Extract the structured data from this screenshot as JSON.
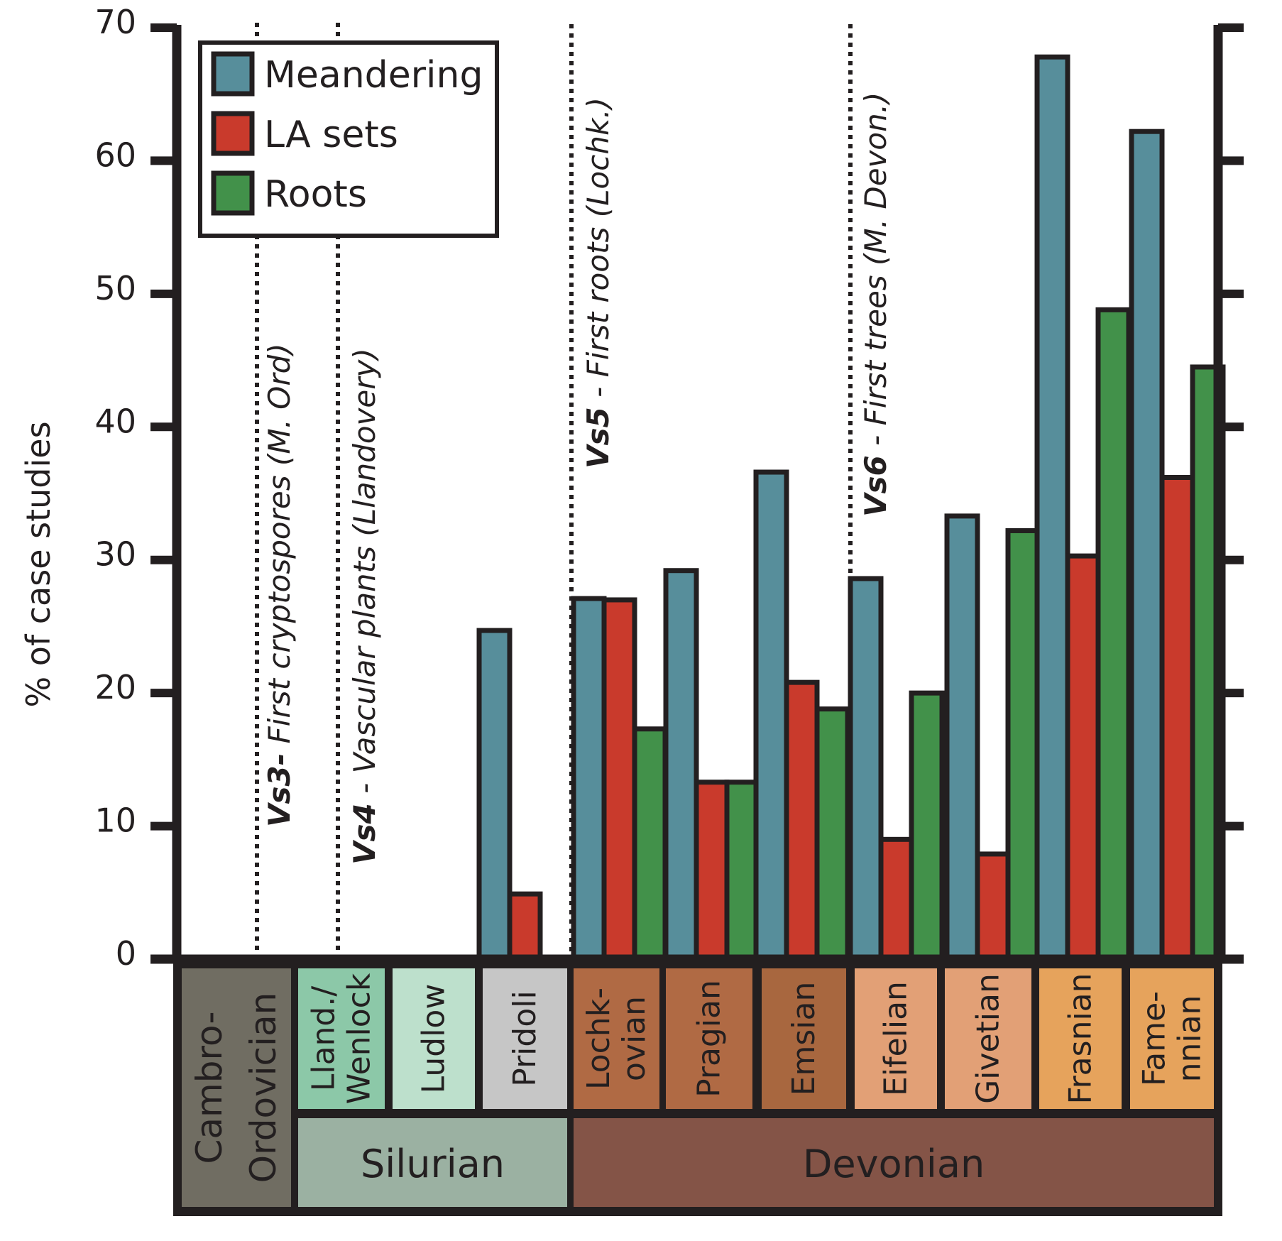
{
  "chart_data": {
    "type": "bar",
    "title": "",
    "xlabel": "",
    "ylabel": "% of case studies",
    "ylim": [
      0,
      70
    ],
    "yticks": [
      0,
      10,
      20,
      30,
      40,
      50,
      60,
      70
    ],
    "ytick_labels": [
      "0",
      "10",
      "20",
      "30",
      "40",
      "50",
      "60",
      "70"
    ],
    "grid": false,
    "legend_position": "top-left",
    "categories": [
      "Cambro-Ordovician",
      "Lland./Wenlock",
      "Ludlow",
      "Pridoli",
      "Lochkovian",
      "Pragian",
      "Emsian",
      "Eifelian",
      "Givetian",
      "Frasnian",
      "Famennian"
    ],
    "series": [
      {
        "name": "Meandering",
        "color": "#578e9b",
        "values": [
          0,
          0,
          0,
          24.7,
          27.1,
          29.2,
          36.6,
          28.6,
          33.3,
          67.8,
          62.2
        ]
      },
      {
        "name": "LA sets",
        "color": "#c93a2c",
        "values": [
          0,
          0,
          0,
          4.9,
          27.0,
          13.3,
          20.8,
          9.0,
          7.9,
          30.3,
          36.2
        ]
      },
      {
        "name": "Roots",
        "color": "#42914a",
        "values": [
          0,
          0,
          0,
          0,
          17.3,
          13.3,
          18.8,
          20.0,
          32.2,
          48.8,
          44.5
        ]
      }
    ],
    "legend": [
      "Meandering",
      "LA sets",
      "Roots"
    ],
    "annotations": [
      {
        "bold": "Vs3-",
        "text": " First cryptospores (M. Ord)",
        "between": [
          "Cambro-Ordovician",
          "Lland./Wenlock"
        ]
      },
      {
        "bold": "Vs4",
        "text": " - Vascular plants (Llandovery)",
        "between": [
          "Cambro-Ordovician",
          "Lland./Wenlock"
        ]
      },
      {
        "bold": "Vs5",
        "text": " - First roots (Lochk.)",
        "between": [
          "Pridoli",
          "Lochkovian"
        ]
      },
      {
        "bold": "Vs6",
        "text": " - First trees (M. Devon.)",
        "between": [
          "Emsian",
          "Eifelian"
        ]
      }
    ],
    "stages": [
      {
        "lines": [
          "Cambro-",
          "Ordovician"
        ],
        "color": "#706d62"
      },
      {
        "lines": [
          "Lland./",
          "Wenlock"
        ],
        "color": "#8cc8a8"
      },
      {
        "lines": [
          "Ludlow"
        ],
        "color": "#bde0cc"
      },
      {
        "lines": [
          "Pridoli"
        ],
        "color": "#c6c6c6"
      },
      {
        "lines": [
          "Lochk-",
          "ovian"
        ],
        "color": "#b06a44"
      },
      {
        "lines": [
          "Pragian"
        ],
        "color": "#b06a44"
      },
      {
        "lines": [
          "Emsian"
        ],
        "color": "#a8673f"
      },
      {
        "lines": [
          "Eifelian"
        ],
        "color": "#e2a076"
      },
      {
        "lines": [
          "Givetian"
        ],
        "color": "#e2a076"
      },
      {
        "lines": [
          "Frasnian"
        ],
        "color": "#e6a35c"
      },
      {
        "lines": [
          "Fame-",
          "nnian"
        ],
        "color": "#e6a35c"
      }
    ],
    "periods": [
      {
        "label": "Silurian",
        "color": "#9bb1a2"
      },
      {
        "label": "Devonian",
        "color": "#845447"
      }
    ]
  }
}
